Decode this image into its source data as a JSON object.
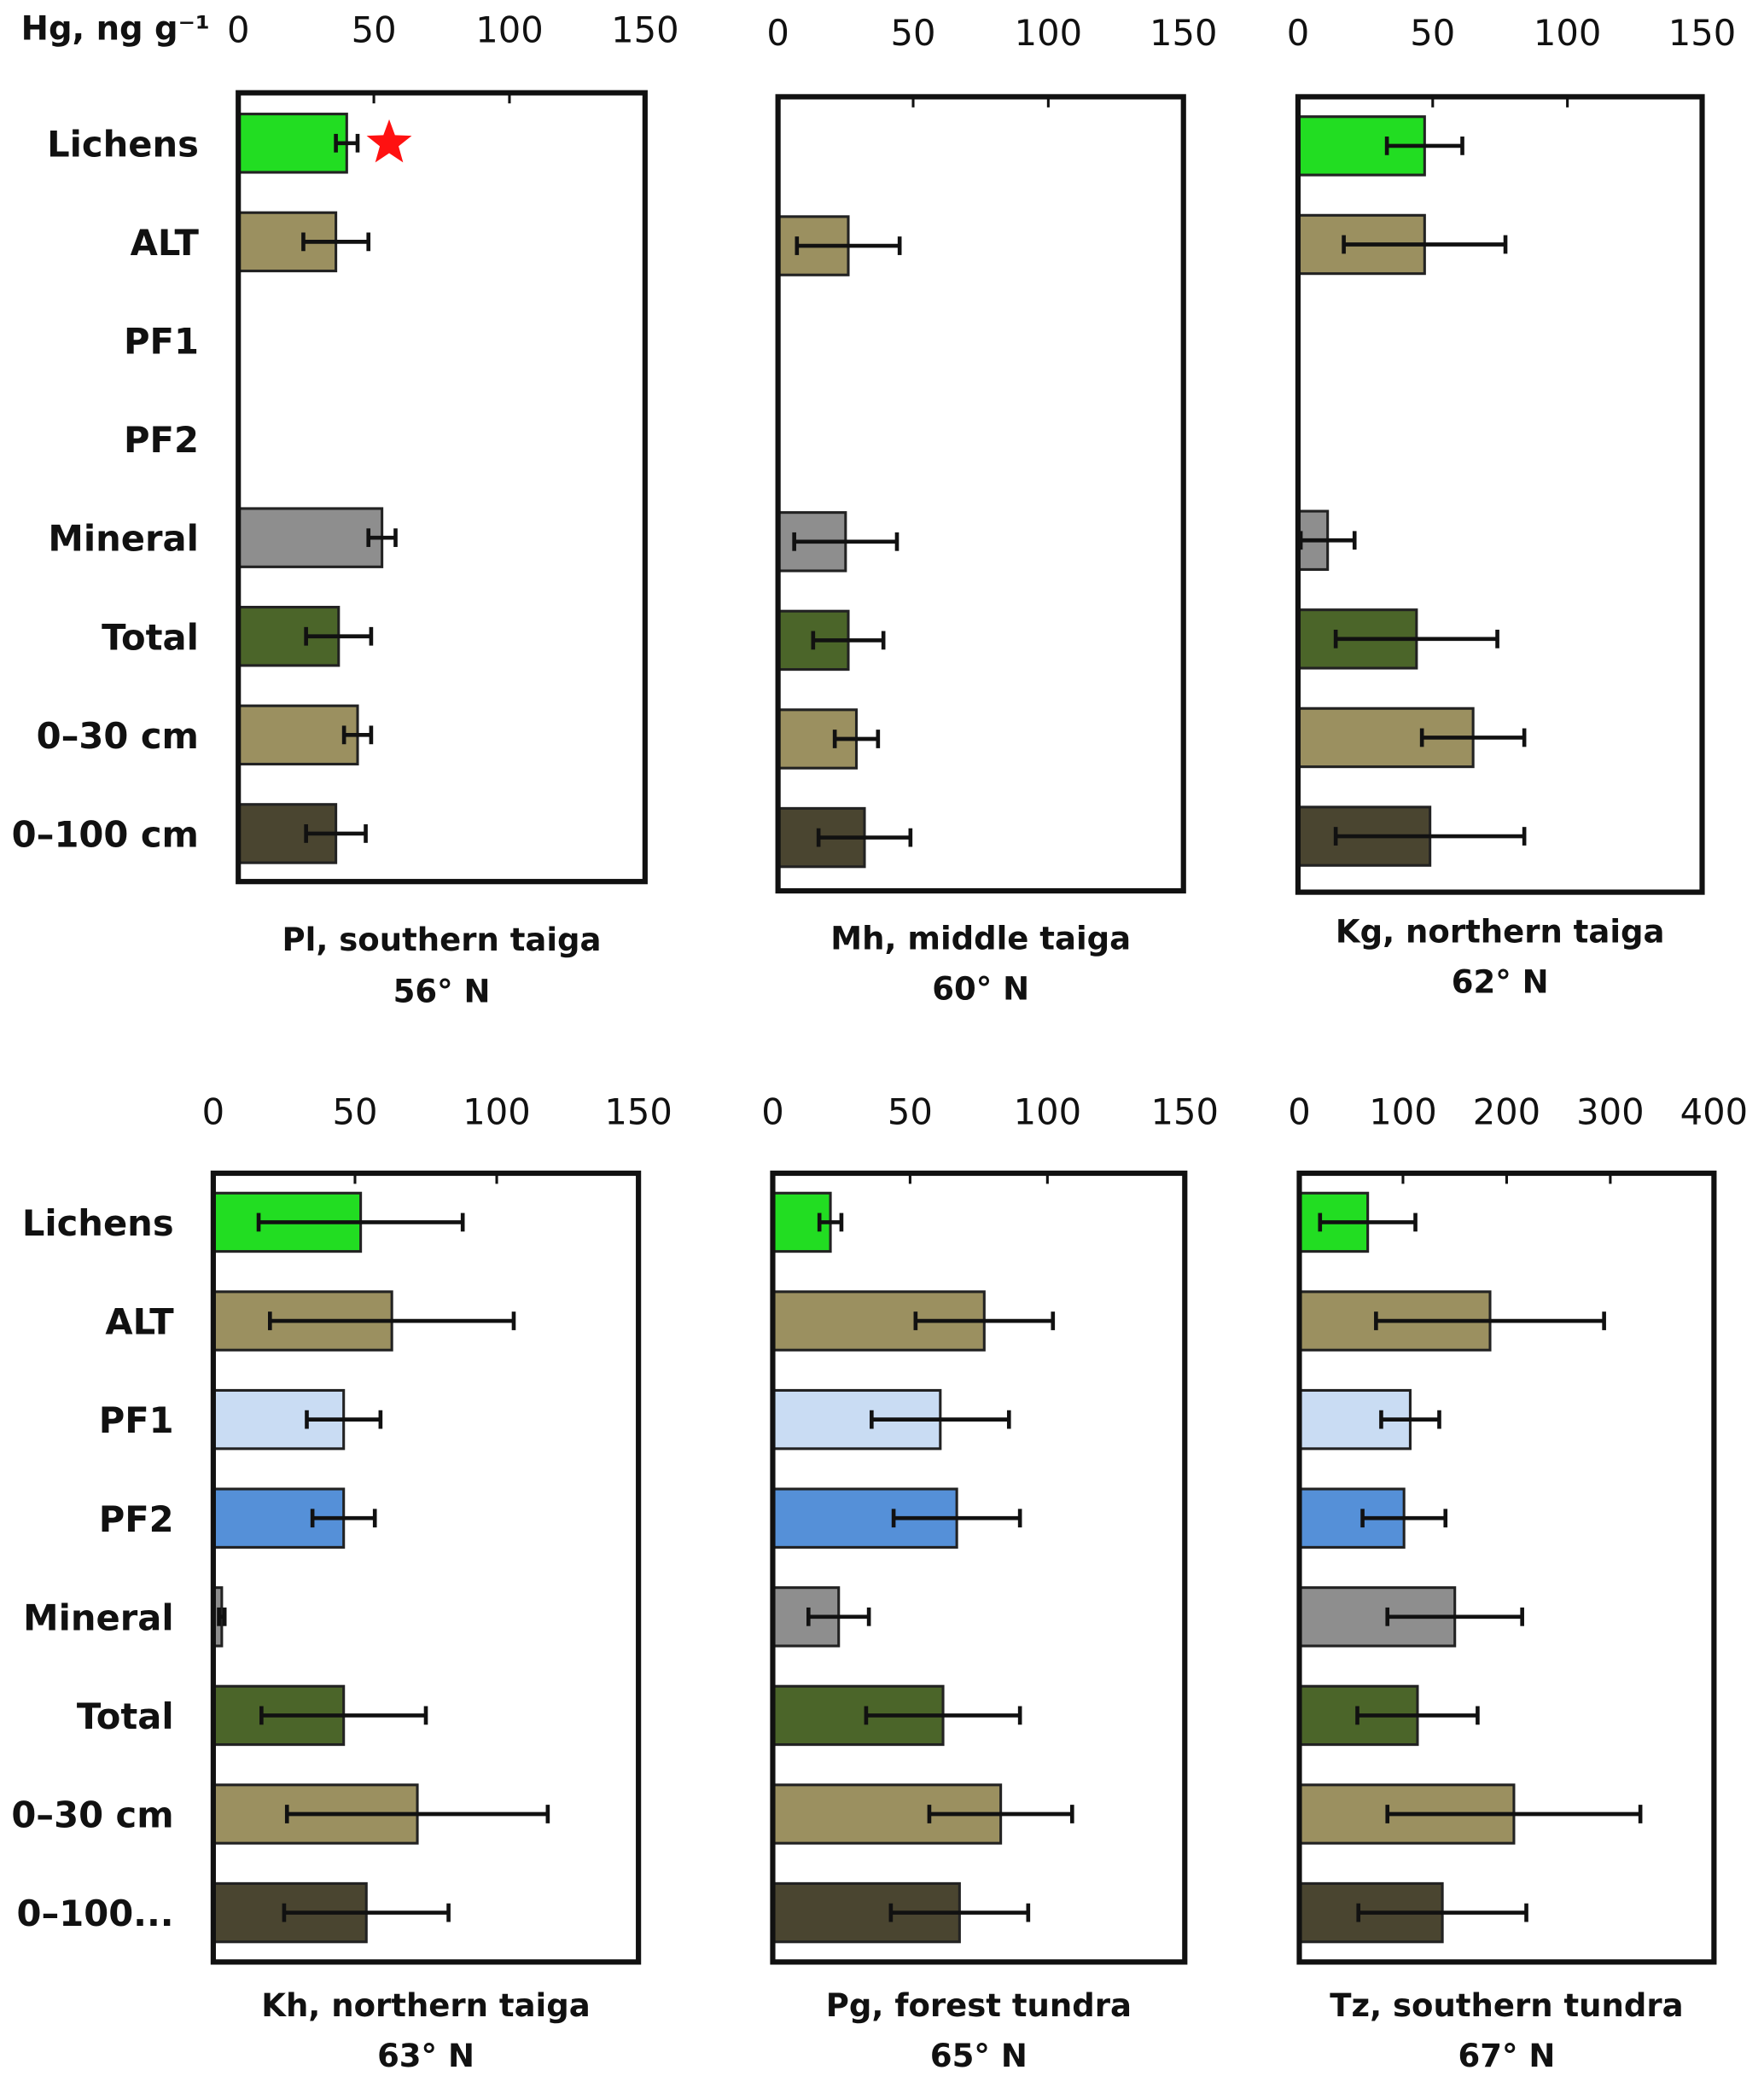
{
  "unit_label": "Hg, ng g⁻¹",
  "row_labels_top": [
    "Lichens",
    "ALT",
    "PF1",
    "PF2",
    "Mineral",
    "Total",
    "0–30 cm",
    "0–100 cm"
  ],
  "row_labels_bottom": [
    "Lichens",
    "ALT",
    "PF1",
    "PF2",
    "Mineral",
    "Total",
    "0–30 cm",
    "0–100..."
  ],
  "colors": {
    "Lichens": "#22dd22",
    "ALT": "#9b9060",
    "PF1": "#c9dcf3",
    "PF2": "#5590d8",
    "Mineral": "#8e8e8e",
    "Total": "#4b6529",
    "0–30 cm": "#9b9060",
    "0–100 cm": "#4a4530"
  },
  "chart_data": [
    {
      "type": "bar",
      "orientation": "horizontal",
      "title": "Pl, southern taiga",
      "subtitle": "56° N",
      "xlim": [
        0,
        150
      ],
      "ticks": [
        0,
        50,
        100,
        150
      ],
      "categories": [
        "Lichens",
        "ALT",
        "PF1",
        "PF2",
        "Mineral",
        "Total",
        "0–30 cm",
        "0–100 cm"
      ],
      "values": [
        40,
        36,
        null,
        null,
        53,
        37,
        44,
        36
      ],
      "errors": [
        4,
        12,
        null,
        null,
        5,
        12,
        5,
        11
      ],
      "annotation": {
        "category": "Lichens",
        "marker": "red-star"
      }
    },
    {
      "type": "bar",
      "orientation": "horizontal",
      "title": "Mh, middle taiga",
      "subtitle": "60° N",
      "xlim": [
        0,
        150
      ],
      "ticks": [
        0,
        50,
        100,
        150
      ],
      "categories": [
        "Lichens",
        "ALT",
        "PF1",
        "PF2",
        "Mineral",
        "Total",
        "0–30 cm",
        "0–100 cm"
      ],
      "values": [
        null,
        26,
        null,
        null,
        25,
        26,
        29,
        32
      ],
      "errors": [
        null,
        19,
        null,
        null,
        19,
        13,
        8,
        17
      ]
    },
    {
      "type": "bar",
      "orientation": "horizontal",
      "title": "Kg, northern taiga",
      "subtitle": "62° N",
      "xlim": [
        0,
        150
      ],
      "ticks": [
        0,
        50,
        100,
        150
      ],
      "categories": [
        "Lichens",
        "ALT",
        "PF1",
        "PF2",
        "Mineral",
        "Total",
        "0–30 cm",
        "0–100 cm"
      ],
      "values": [
        47,
        47,
        null,
        null,
        11,
        44,
        65,
        49
      ],
      "errors": [
        14,
        30,
        null,
        null,
        10,
        30,
        19,
        35
      ]
    },
    {
      "type": "bar",
      "orientation": "horizontal",
      "title": "Kh, northern taiga",
      "subtitle": "63° N",
      "xlim": [
        0,
        150
      ],
      "ticks": [
        0,
        50,
        100,
        150
      ],
      "categories": [
        "Lichens",
        "ALT",
        "PF1",
        "PF2",
        "Mineral",
        "Total",
        "0–30 cm",
        "0–100 cm"
      ],
      "values": [
        52,
        63,
        46,
        46,
        3,
        46,
        72,
        54
      ],
      "errors": [
        36,
        43,
        13,
        11,
        1,
        29,
        46,
        29
      ]
    },
    {
      "type": "bar",
      "orientation": "horizontal",
      "title": "Pg, forest tundra",
      "subtitle": "65° N",
      "xlim": [
        0,
        150
      ],
      "ticks": [
        0,
        50,
        100,
        150
      ],
      "categories": [
        "Lichens",
        "ALT",
        "PF1",
        "PF2",
        "Mineral",
        "Total",
        "0–30 cm",
        "0–100 cm"
      ],
      "values": [
        21,
        77,
        61,
        67,
        24,
        62,
        83,
        68
      ],
      "errors": [
        4,
        25,
        25,
        23,
        11,
        28,
        26,
        25
      ]
    },
    {
      "type": "bar",
      "orientation": "horizontal",
      "title": "Tz, southern tundra",
      "subtitle": "67° N",
      "xlim": [
        0,
        400
      ],
      "ticks": [
        0,
        100,
        200,
        300,
        400
      ],
      "categories": [
        "Lichens",
        "ALT",
        "PF1",
        "PF2",
        "Mineral",
        "Total",
        "0–30 cm",
        "0–100 cm"
      ],
      "values": [
        66,
        184,
        107,
        101,
        150,
        114,
        207,
        138
      ],
      "errors": [
        46,
        110,
        28,
        40,
        65,
        58,
        122,
        81
      ]
    }
  ]
}
